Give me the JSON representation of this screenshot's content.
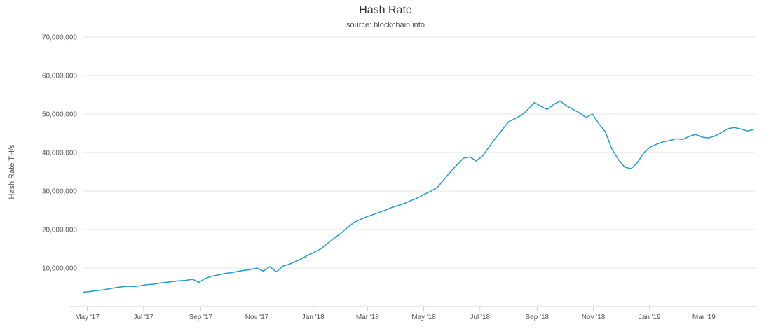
{
  "chart_data": {
    "type": "line",
    "title": "Hash Rate",
    "subtitle": "source: blockchain.info",
    "ylabel": "Hash Rate TH/s",
    "xlabel": "",
    "ylim": [
      0,
      70000000
    ],
    "xlim": [
      "2017-04-26",
      "2019-04-26"
    ],
    "grid": true,
    "y_ticks": [
      {
        "value": 10000000,
        "label": "10,000,000"
      },
      {
        "value": 20000000,
        "label": "20,000,000"
      },
      {
        "value": 30000000,
        "label": "30,000,000"
      },
      {
        "value": 40000000,
        "label": "40,000,000"
      },
      {
        "value": 50000000,
        "label": "50,000,000"
      },
      {
        "value": 60000000,
        "label": "60,000,000"
      },
      {
        "value": 70000000,
        "label": "70,000,000"
      }
    ],
    "x_ticks": [
      {
        "date": "2017-05-01",
        "label": "May '17"
      },
      {
        "date": "2017-07-01",
        "label": "Jul '17"
      },
      {
        "date": "2017-09-01",
        "label": "Sep '17"
      },
      {
        "date": "2017-11-01",
        "label": "Nov '17"
      },
      {
        "date": "2018-01-01",
        "label": "Jan '18"
      },
      {
        "date": "2018-03-01",
        "label": "Mar '18"
      },
      {
        "date": "2018-05-01",
        "label": "May '18"
      },
      {
        "date": "2018-07-01",
        "label": "Jul '18"
      },
      {
        "date": "2018-09-01",
        "label": "Sep '18"
      },
      {
        "date": "2018-11-01",
        "label": "Nov '18"
      },
      {
        "date": "2019-01-01",
        "label": "Jan '19"
      },
      {
        "date": "2019-03-01",
        "label": "Mar '19"
      }
    ],
    "series": [
      {
        "color": "#1f9bcf",
        "points": [
          [
            "2017-04-26",
            3700000
          ],
          [
            "2017-05-03",
            3900000
          ],
          [
            "2017-05-10",
            4100000
          ],
          [
            "2017-05-17",
            4300000
          ],
          [
            "2017-05-24",
            4600000
          ],
          [
            "2017-05-31",
            4900000
          ],
          [
            "2017-06-07",
            5100000
          ],
          [
            "2017-06-14",
            5300000
          ],
          [
            "2017-06-21",
            5200000
          ],
          [
            "2017-06-28",
            5400000
          ],
          [
            "2017-07-05",
            5700000
          ],
          [
            "2017-07-12",
            5800000
          ],
          [
            "2017-07-19",
            6100000
          ],
          [
            "2017-07-26",
            6300000
          ],
          [
            "2017-08-02",
            6500000
          ],
          [
            "2017-08-09",
            6700000
          ],
          [
            "2017-08-16",
            6800000
          ],
          [
            "2017-08-23",
            7100000
          ],
          [
            "2017-08-30",
            6300000
          ],
          [
            "2017-09-06",
            7300000
          ],
          [
            "2017-09-13",
            7900000
          ],
          [
            "2017-09-20",
            8200000
          ],
          [
            "2017-09-27",
            8600000
          ],
          [
            "2017-10-04",
            8800000
          ],
          [
            "2017-10-11",
            9100000
          ],
          [
            "2017-10-18",
            9400000
          ],
          [
            "2017-10-25",
            9600000
          ],
          [
            "2017-11-01",
            10000000
          ],
          [
            "2017-11-08",
            9200000
          ],
          [
            "2017-11-15",
            10400000
          ],
          [
            "2017-11-22",
            9000000
          ],
          [
            "2017-11-29",
            10500000
          ],
          [
            "2017-12-06",
            11000000
          ],
          [
            "2017-12-13",
            11700000
          ],
          [
            "2017-12-20",
            12500000
          ],
          [
            "2017-12-27",
            13400000
          ],
          [
            "2018-01-03",
            14200000
          ],
          [
            "2018-01-10",
            15100000
          ],
          [
            "2018-01-17",
            16500000
          ],
          [
            "2018-01-24",
            17800000
          ],
          [
            "2018-01-31",
            19000000
          ],
          [
            "2018-02-07",
            20500000
          ],
          [
            "2018-02-14",
            21800000
          ],
          [
            "2018-02-21",
            22600000
          ],
          [
            "2018-02-28",
            23300000
          ],
          [
            "2018-03-07",
            23900000
          ],
          [
            "2018-03-14",
            24500000
          ],
          [
            "2018-03-21",
            25100000
          ],
          [
            "2018-03-28",
            25800000
          ],
          [
            "2018-04-04",
            26300000
          ],
          [
            "2018-04-11",
            26900000
          ],
          [
            "2018-04-18",
            27600000
          ],
          [
            "2018-04-25",
            28300000
          ],
          [
            "2018-05-02",
            29200000
          ],
          [
            "2018-05-09",
            30000000
          ],
          [
            "2018-05-16",
            31000000
          ],
          [
            "2018-05-23",
            33000000
          ],
          [
            "2018-05-30",
            35000000
          ],
          [
            "2018-06-06",
            36800000
          ],
          [
            "2018-06-13",
            38500000
          ],
          [
            "2018-06-20",
            38900000
          ],
          [
            "2018-06-27",
            37800000
          ],
          [
            "2018-07-04",
            39200000
          ],
          [
            "2018-07-11",
            41500000
          ],
          [
            "2018-07-18",
            43800000
          ],
          [
            "2018-07-25",
            45900000
          ],
          [
            "2018-08-01",
            48000000
          ],
          [
            "2018-08-08",
            48800000
          ],
          [
            "2018-08-15",
            49700000
          ],
          [
            "2018-08-22",
            51200000
          ],
          [
            "2018-08-29",
            53000000
          ],
          [
            "2018-09-05",
            52000000
          ],
          [
            "2018-09-12",
            51200000
          ],
          [
            "2018-09-19",
            52500000
          ],
          [
            "2018-09-26",
            53400000
          ],
          [
            "2018-10-03",
            52100000
          ],
          [
            "2018-10-10",
            51200000
          ],
          [
            "2018-10-17",
            50300000
          ],
          [
            "2018-10-24",
            49100000
          ],
          [
            "2018-10-31",
            50000000
          ],
          [
            "2018-11-07",
            47500000
          ],
          [
            "2018-11-14",
            45400000
          ],
          [
            "2018-11-21",
            41000000
          ],
          [
            "2018-11-28",
            38200000
          ],
          [
            "2018-12-05",
            36200000
          ],
          [
            "2018-12-12",
            35800000
          ],
          [
            "2018-12-19",
            37500000
          ],
          [
            "2018-12-26",
            40000000
          ],
          [
            "2019-01-02",
            41500000
          ],
          [
            "2019-01-09",
            42200000
          ],
          [
            "2019-01-16",
            42800000
          ],
          [
            "2019-01-23",
            43100000
          ],
          [
            "2019-01-30",
            43600000
          ],
          [
            "2019-02-06",
            43400000
          ],
          [
            "2019-02-13",
            44200000
          ],
          [
            "2019-02-20",
            44700000
          ],
          [
            "2019-02-27",
            44000000
          ],
          [
            "2019-03-06",
            43800000
          ],
          [
            "2019-03-13",
            44300000
          ],
          [
            "2019-03-20",
            45200000
          ],
          [
            "2019-03-27",
            46200000
          ],
          [
            "2019-04-03",
            46500000
          ],
          [
            "2019-04-10",
            46100000
          ],
          [
            "2019-04-17",
            45600000
          ],
          [
            "2019-04-24",
            46000000
          ]
        ]
      }
    ]
  }
}
